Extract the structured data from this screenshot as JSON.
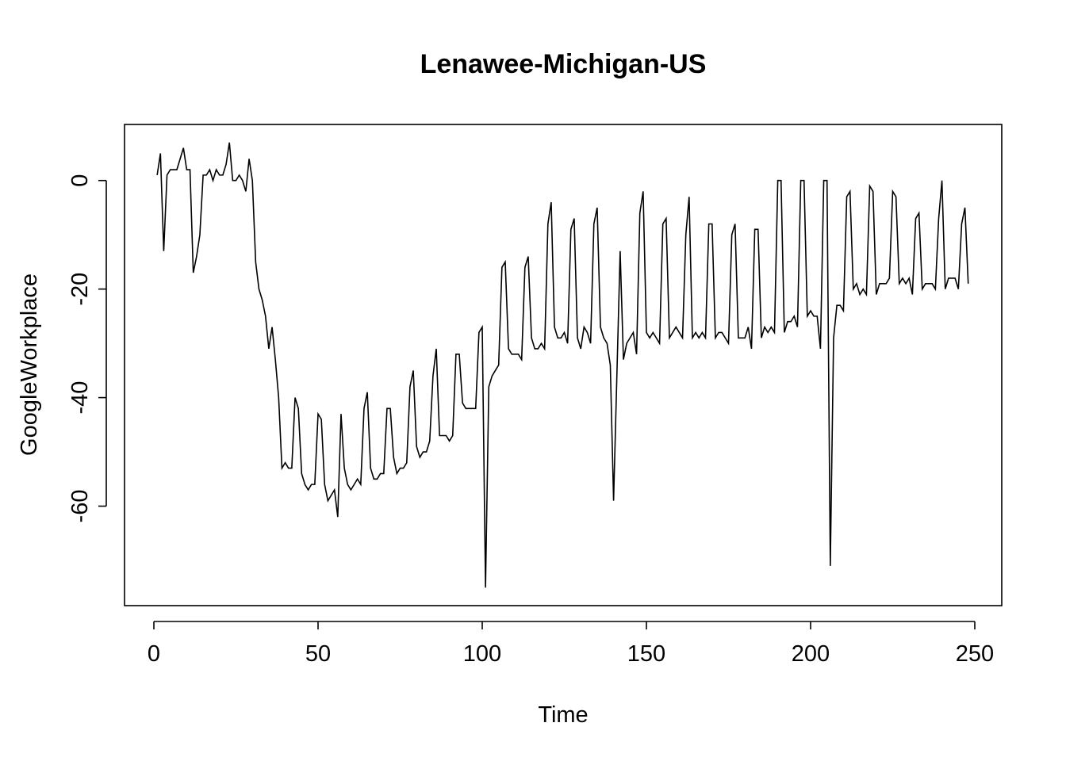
{
  "chart_data": {
    "type": "line",
    "title": "Lenawee-Michigan-US",
    "xlabel": "Time",
    "ylabel": "GoogleWorkplace",
    "xlim": [
      1,
      248
    ],
    "ylim": [
      -75,
      7
    ],
    "x_ticks": [
      0,
      50,
      100,
      150,
      200,
      250
    ],
    "x_tick_labels": [
      "0",
      "50",
      "100",
      "150",
      "200",
      "250"
    ],
    "y_ticks": [
      0,
      -20,
      -40,
      -60
    ],
    "y_tick_labels": [
      "0",
      "-20",
      "-40",
      "-60"
    ],
    "grid": false,
    "series": [
      {
        "color": "#000000",
        "x_start": 1,
        "values": [
          1,
          5,
          -13,
          1,
          2,
          2,
          2,
          4,
          6,
          2,
          2,
          -17,
          -14,
          -10,
          1,
          1,
          2,
          0,
          2,
          1,
          1,
          3,
          7,
          0,
          0,
          1,
          0,
          -2,
          4,
          0,
          -15,
          -20,
          -22,
          -25,
          -31,
          -27,
          -33,
          -40,
          -53,
          -52,
          -53,
          -53,
          -40,
          -42,
          -54,
          -56,
          -57,
          -56,
          -56,
          -43,
          -44,
          -56,
          -59,
          -58,
          -57,
          -62,
          -43,
          -53,
          -56,
          -57,
          -56,
          -55,
          -56,
          -42,
          -39,
          -53,
          -55,
          -55,
          -54,
          -54,
          -42,
          -42,
          -51,
          -54,
          -53,
          -53,
          -52,
          -38,
          -35,
          -49,
          -51,
          -50,
          -50,
          -48,
          -36,
          -31,
          -47,
          -47,
          -47,
          -48,
          -47,
          -32,
          -32,
          -41,
          -42,
          -42,
          -42,
          -42,
          -28,
          -27,
          -75,
          -38,
          -36,
          -35,
          -34,
          -16,
          -15,
          -31,
          -32,
          -32,
          -32,
          -33,
          -16,
          -14,
          -29,
          -31,
          -31,
          -30,
          -31,
          -8,
          -4,
          -27,
          -29,
          -29,
          -28,
          -30,
          -9,
          -7,
          -29,
          -31,
          -27,
          -28,
          -30,
          -8,
          -5,
          -27,
          -29,
          -30,
          -34,
          -59,
          -36,
          -13,
          -33,
          -30,
          -29,
          -28,
          -32,
          -6,
          -2,
          -28,
          -29,
          -28,
          -29,
          -30,
          -8,
          -7,
          -29,
          -28,
          -27,
          -28,
          -29,
          -10,
          -3,
          -29,
          -28,
          -29,
          -28,
          -29,
          -8,
          -8,
          -29,
          -28,
          -28,
          -29,
          -30,
          -10,
          -8,
          -29,
          -29,
          -29,
          -27,
          -31,
          -9,
          -9,
          -29,
          -27,
          -28,
          -27,
          -28,
          0,
          0,
          -28,
          -26,
          -26,
          -25,
          -27,
          0,
          0,
          -25,
          -24,
          -25,
          -25,
          -31,
          0,
          0,
          -71,
          -29,
          -23,
          -23,
          -24,
          -3,
          -2,
          -20,
          -19,
          -21,
          -20,
          -21,
          -1,
          -2,
          -21,
          -19,
          -19,
          -19,
          -18,
          -2,
          -3,
          -19,
          -18,
          -19,
          -18,
          -21,
          -7,
          -6,
          -20,
          -19,
          -19,
          -19,
          -20,
          -7,
          0,
          -20,
          -18,
          -18,
          -18,
          -20,
          -8,
          -5,
          -19
        ]
      }
    ]
  }
}
